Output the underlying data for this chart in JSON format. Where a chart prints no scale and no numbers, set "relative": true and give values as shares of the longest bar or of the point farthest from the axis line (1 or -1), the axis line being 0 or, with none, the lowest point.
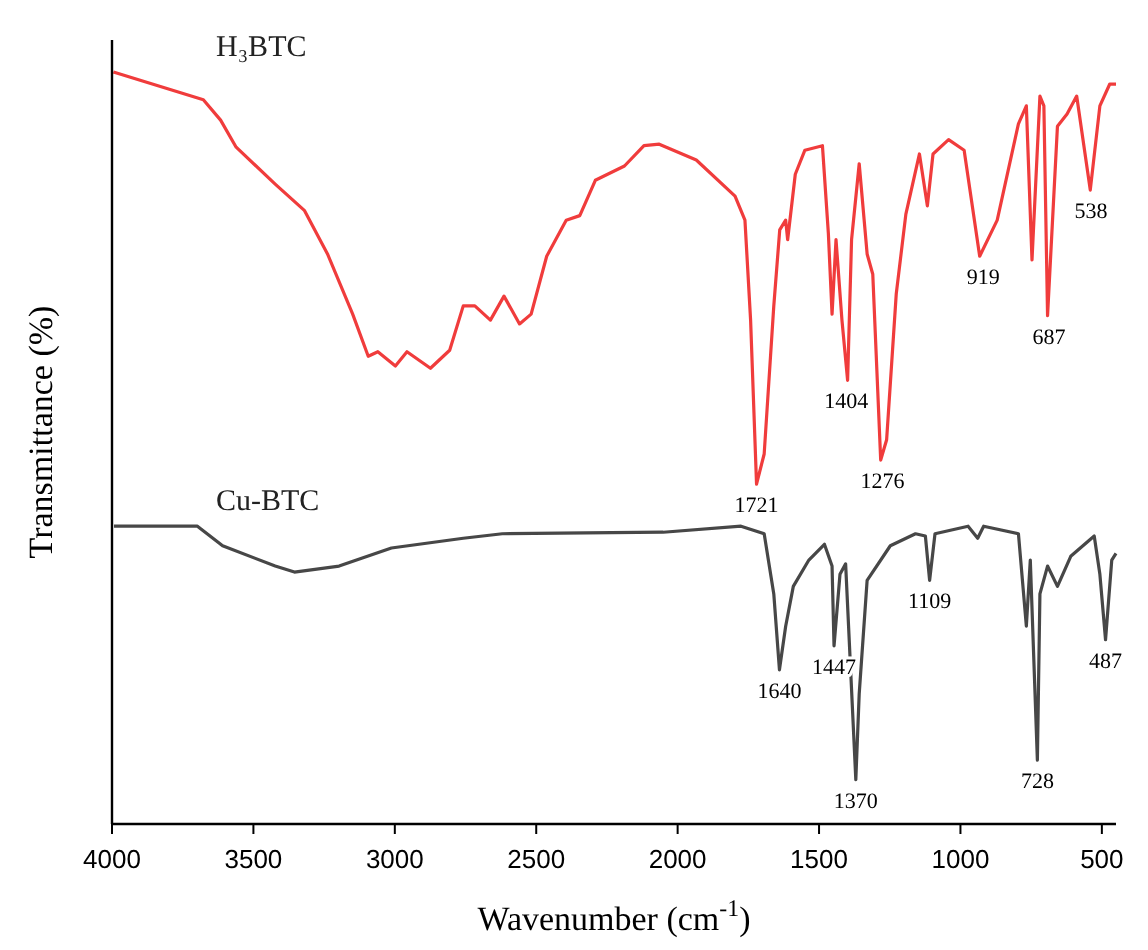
{
  "chart_data": {
    "type": "line",
    "relative": true,
    "xlabel": "Wavenumber (cm$^{-1}$)",
    "ylabel": "Transmittance (%)",
    "xlim": [
      4000,
      450
    ],
    "xticks": [
      4000,
      3500,
      3000,
      2500,
      2000,
      1500,
      1000,
      500
    ],
    "grid": false,
    "marker": "none",
    "line_style": "solid",
    "series": [
      {
        "name": "H₃BTC",
        "color": "#f03c3c",
        "x": [
          3995,
          3677,
          3616,
          3561,
          3423,
          3320,
          3238,
          3149,
          3094,
          3060,
          2998,
          2957,
          2874,
          2806,
          2758,
          2717,
          2662,
          2614,
          2559,
          2518,
          2463,
          2394,
          2346,
          2291,
          2188,
          2119,
          2065,
          1934,
          1797,
          1762,
          1742,
          1721,
          1694,
          1660,
          1639,
          1618,
          1611,
          1584,
          1550,
          1488,
          1467,
          1454,
          1440,
          1419,
          1399,
          1385,
          1358,
          1330,
          1310,
          1282,
          1261,
          1227,
          1193,
          1145,
          1117,
          1097,
          1042,
          987,
          932,
          870,
          795,
          767,
          747,
          719,
          705,
          692,
          657,
          623,
          589,
          541,
          507,
          472,
          450
        ],
        "values": [
          1.0,
          0.963,
          0.936,
          0.9,
          0.851,
          0.816,
          0.758,
          0.678,
          0.622,
          0.628,
          0.609,
          0.628,
          0.606,
          0.63,
          0.689,
          0.689,
          0.67,
          0.702,
          0.665,
          0.678,
          0.755,
          0.803,
          0.809,
          0.856,
          0.875,
          0.902,
          0.904,
          0.883,
          0.835,
          0.803,
          0.67,
          0.452,
          0.492,
          0.689,
          0.79,
          0.803,
          0.777,
          0.864,
          0.896,
          0.902,
          0.785,
          0.678,
          0.777,
          0.67,
          0.59,
          0.777,
          0.878,
          0.758,
          0.731,
          0.484,
          0.511,
          0.705,
          0.811,
          0.891,
          0.822,
          0.891,
          0.91,
          0.896,
          0.755,
          0.803,
          0.931,
          0.955,
          0.75,
          0.968,
          0.955,
          0.676,
          0.928,
          0.944,
          0.968,
          0.843,
          0.955,
          0.984,
          0.984
        ]
      },
      {
        "name": "Cu-BTC",
        "color": "#474747",
        "x": [
          3993,
          3698,
          3609,
          3423,
          3355,
          3197,
          3012,
          2758,
          2620,
          2051,
          1776,
          1694,
          1660,
          1640,
          1618,
          1591,
          1536,
          1481,
          1454,
          1447,
          1426,
          1406,
          1370,
          1358,
          1330,
          1248,
          1159,
          1124,
          1109,
          1090,
          973,
          939,
          918,
          795,
          767,
          753,
          728,
          719,
          692,
          657,
          610,
          527,
          507,
          487,
          465,
          450
        ],
        "values": [
          0.396,
          0.396,
          0.37,
          0.343,
          0.335,
          0.343,
          0.367,
          0.38,
          0.386,
          0.388,
          0.396,
          0.386,
          0.306,
          0.205,
          0.263,
          0.316,
          0.351,
          0.372,
          0.343,
          0.237,
          0.332,
          0.346,
          0.059,
          0.173,
          0.324,
          0.37,
          0.386,
          0.383,
          0.324,
          0.386,
          0.396,
          0.38,
          0.396,
          0.386,
          0.263,
          0.351,
          0.085,
          0.306,
          0.343,
          0.316,
          0.356,
          0.383,
          0.332,
          0.245,
          0.351,
          0.36
        ]
      }
    ],
    "annotations": [
      {
        "text": "1721",
        "x": 1721,
        "y": 0.452
      },
      {
        "text": "1404",
        "x": 1404,
        "y": 0.59
      },
      {
        "text": "1276",
        "x": 1276,
        "y": 0.484
      },
      {
        "text": "919",
        "x": 919,
        "y": 0.755
      },
      {
        "text": "687",
        "x": 687,
        "y": 0.676
      },
      {
        "text": "538",
        "x": 538,
        "y": 0.843
      },
      {
        "text": "1640",
        "x": 1640,
        "y": 0.205
      },
      {
        "text": "1447",
        "x": 1447,
        "y": 0.237
      },
      {
        "text": "1370",
        "x": 1370,
        "y": 0.059
      },
      {
        "text": "1109",
        "x": 1109,
        "y": 0.324
      },
      {
        "text": "728",
        "x": 728,
        "y": 0.085
      },
      {
        "text": "487",
        "x": 487,
        "y": 0.245
      }
    ]
  }
}
